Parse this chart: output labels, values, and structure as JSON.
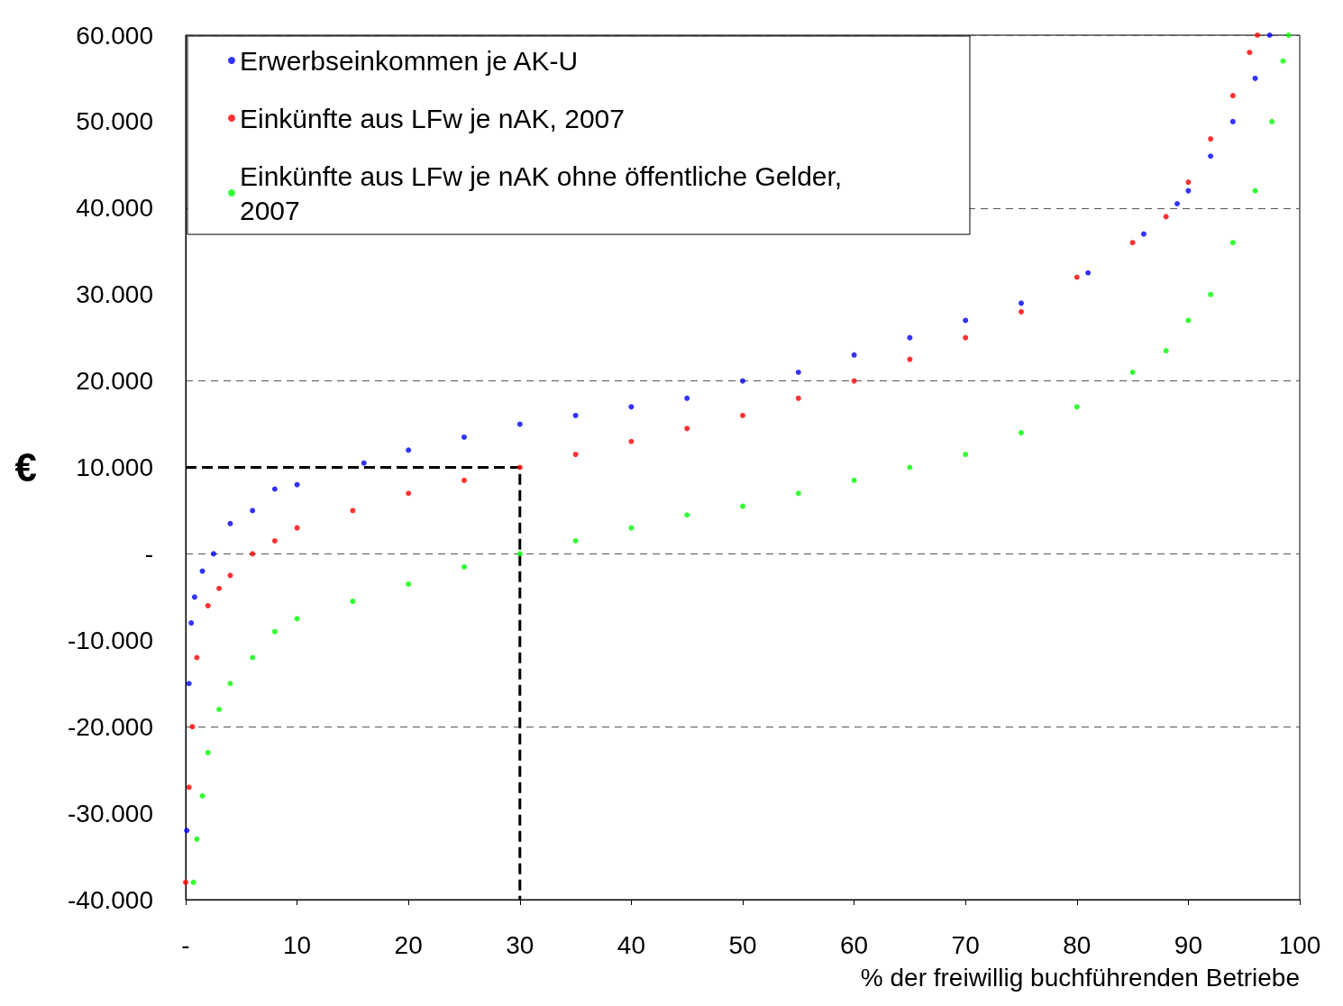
{
  "chart_data": {
    "type": "scatter",
    "xlabel": "% der freiwillig buchführenden Betriebe",
    "ylabel": "€",
    "xlim": [
      0,
      100
    ],
    "xticks": [
      {
        "value": 0,
        "label": "-"
      },
      10,
      20,
      30,
      40,
      50,
      60,
      70,
      80,
      90,
      100
    ],
    "ylim": [
      -40000,
      60000
    ],
    "yticks": [
      {
        "value": -40000,
        "label": "-40.000"
      },
      {
        "value": -30000,
        "label": "-30.000"
      },
      {
        "value": -20000,
        "label": "-20.000"
      },
      {
        "value": -10000,
        "label": "-10.000"
      },
      {
        "value": 0,
        "label": "-"
      },
      {
        "value": 10000,
        "label": "10.000"
      },
      {
        "value": 20000,
        "label": "20.000"
      },
      {
        "value": 30000,
        "label": "30.000"
      },
      {
        "value": 40000,
        "label": "40.000"
      },
      {
        "value": 50000,
        "label": "50.000"
      },
      {
        "value": 60000,
        "label": "60.000"
      }
    ],
    "grid": "y",
    "legend": "top left",
    "marker": "circle",
    "series": [
      {
        "name": "Erwerbseinkommen je AK-U",
        "color": "#0000ff",
        "x": [
          0.1,
          0.3,
          0.5,
          0.8,
          1.5,
          2.5,
          4,
          6,
          8,
          10,
          16,
          20,
          25,
          30,
          35,
          40,
          45,
          50,
          55,
          60,
          65,
          70,
          75,
          81,
          86,
          89,
          90,
          92,
          94,
          96,
          97.3
        ],
        "values": [
          -32000,
          -15000,
          -8000,
          -5000,
          -2000,
          0,
          3500,
          5000,
          7500,
          8000,
          10500,
          12000,
          13500,
          15000,
          16000,
          17000,
          18000,
          20000,
          21000,
          23000,
          25000,
          27000,
          29000,
          32500,
          37000,
          40500,
          42000,
          46000,
          50000,
          55000,
          60000
        ]
      },
      {
        "name": "Einkünfte aus LFw je nAK, 2007",
        "color": "#ff0000",
        "x": [
          0,
          0.3,
          0.6,
          1,
          2,
          3,
          4,
          6,
          8,
          10,
          15,
          20,
          25,
          30,
          35,
          40,
          45,
          50,
          55,
          60,
          65,
          70,
          75,
          80,
          85,
          88,
          90,
          92,
          94,
          95.5,
          96.2
        ],
        "values": [
          -38000,
          -27000,
          -20000,
          -12000,
          -6000,
          -4000,
          -2500,
          0,
          1500,
          3000,
          5000,
          7000,
          8500,
          10000,
          11500,
          13000,
          14500,
          16000,
          18000,
          20000,
          22500,
          25000,
          28000,
          32000,
          36000,
          39000,
          43000,
          48000,
          53000,
          58000,
          60000
        ]
      },
      {
        "name": "Einkünfte aus LFw je nAK ohne öffentliche Gelder, 2007",
        "color": "#00ff00",
        "x": [
          0.7,
          1,
          1.5,
          2,
          3,
          4,
          6,
          8,
          10,
          15,
          20,
          25,
          30,
          35,
          40,
          45,
          50,
          55,
          60,
          65,
          70,
          75,
          80,
          85,
          88,
          90,
          92,
          94,
          96,
          97.5,
          98.5,
          99
        ],
        "values": [
          -38000,
          -33000,
          -28000,
          -23000,
          -18000,
          -15000,
          -12000,
          -9000,
          -7500,
          -5500,
          -3500,
          -1500,
          0,
          1500,
          3000,
          4500,
          5500,
          7000,
          8500,
          10000,
          11500,
          14000,
          17000,
          21000,
          23500,
          27000,
          30000,
          36000,
          42000,
          50000,
          57000,
          60000
        ]
      },
      {
        "type": "line",
        "color": "#000000",
        "line_style": "dashed",
        "marker": "none",
        "x": [
          0,
          30,
          30
        ],
        "values": [
          10000,
          10000,
          -40000
        ]
      }
    ]
  }
}
